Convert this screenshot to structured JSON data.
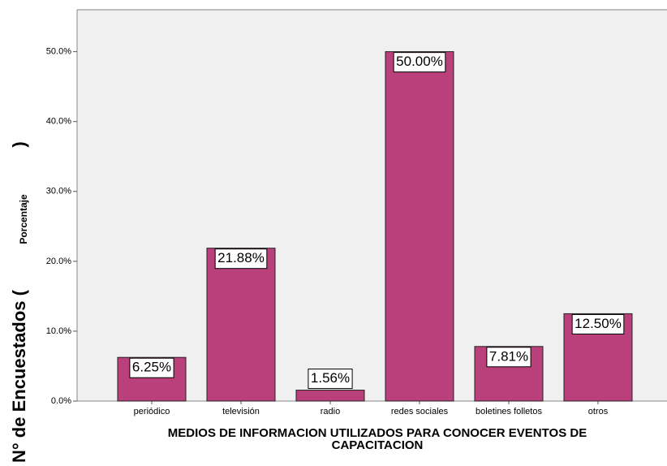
{
  "chart_data": {
    "type": "bar",
    "categories": [
      "periódico",
      "televisión",
      "radio",
      "redes sociales",
      "boletines folletos",
      "otros"
    ],
    "values": [
      6.25,
      21.88,
      1.56,
      50,
      7.81,
      12.5
    ],
    "value_labels": [
      "6.25%",
      "21.88%",
      "1.56%",
      "50.00%",
      "7.81%",
      "12.50%"
    ],
    "color": "#b9407a",
    "ylim": [
      0,
      56
    ],
    "yticks": [
      {
        "value": 0,
        "label": "0.0%"
      },
      {
        "value": 10,
        "label": "10.0%"
      },
      {
        "value": 20,
        "label": "20.0%"
      },
      {
        "value": 30,
        "label": "30.0%"
      },
      {
        "value": 40,
        "label": "40.0%"
      },
      {
        "value": 50,
        "label": "50.0%"
      }
    ],
    "xlabel": [
      "MEDIOS DE INFORMACION UTILIZADOS PARA CONOCER EVENTOS DE",
      "CAPACITACION"
    ],
    "ylabel_prefix": "N° de Encuestados (",
    "ylabel": "Porcentaje",
    "ylabel_suffix": ")"
  }
}
